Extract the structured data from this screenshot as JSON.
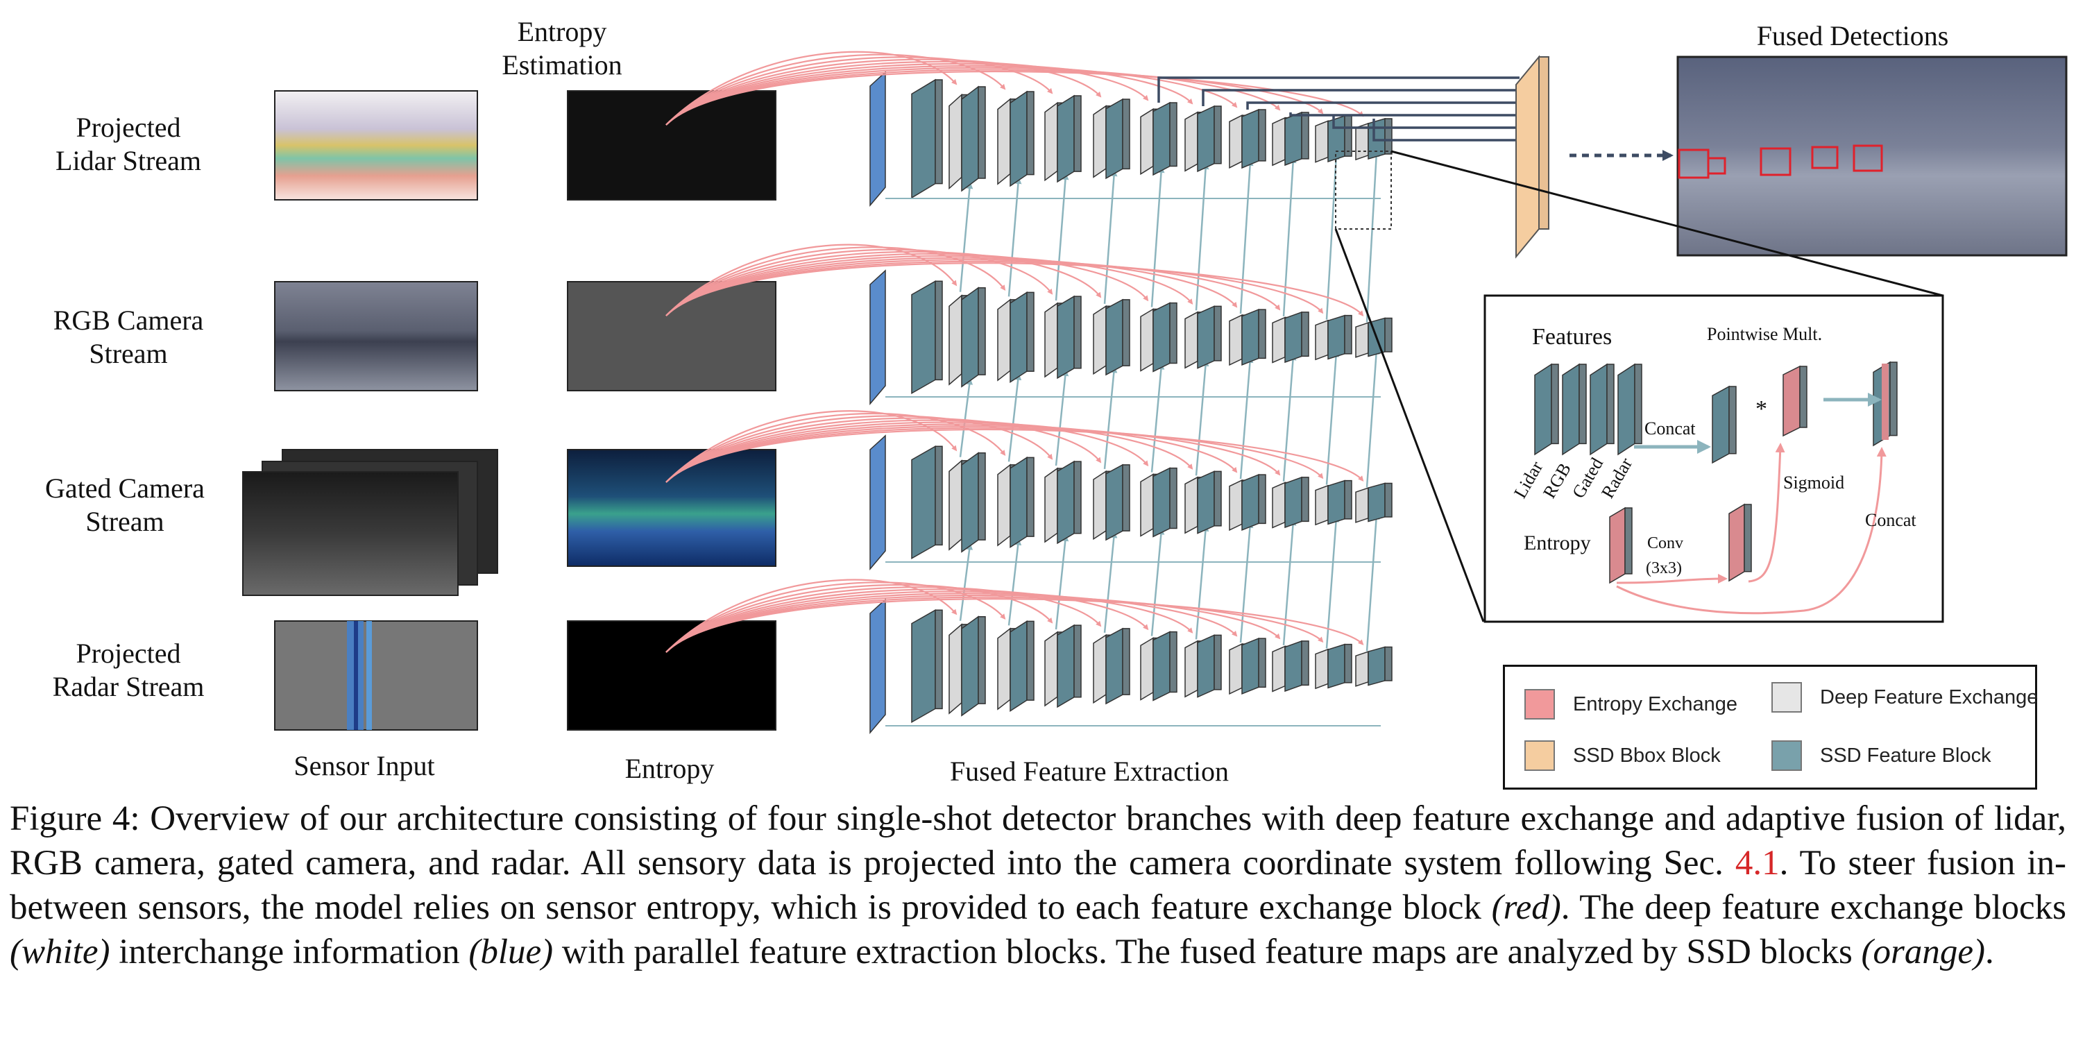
{
  "streams": [
    {
      "label_line1": "Projected",
      "label_line2": "Lidar Stream"
    },
    {
      "label_line1": "RGB Camera",
      "label_line2": "Stream"
    },
    {
      "label_line1": "Gated Camera",
      "label_line2": "Stream"
    },
    {
      "label_line1": "Projected",
      "label_line2": "Radar Stream"
    }
  ],
  "top_label_line1": "Entropy",
  "top_label_line2": "Estimation",
  "bottom_labels": {
    "sensor_input": "Sensor Input",
    "entropy": "Entropy",
    "fused_feature_extraction": "Fused Feature Extraction"
  },
  "fused_detections_title": "Fused Detections",
  "inset": {
    "features": "Features",
    "pointwise": "Pointwise Mult.",
    "star": "*",
    "concat1": "Concat",
    "sigmoid": "Sigmoid",
    "concat2": "Concat",
    "entropy": "Entropy",
    "conv_line1": "Conv",
    "conv_line2": "(3x3)",
    "feature_names": [
      "Lidar",
      "RGB",
      "Gated",
      "Radar"
    ]
  },
  "legend": [
    {
      "label": "Entropy Exchange",
      "color": "#f1999b"
    },
    {
      "label": "Deep Feature Exchange",
      "color": "#e6e6e6"
    },
    {
      "label": "SSD Bbox Block",
      "color": "#f5cda0"
    },
    {
      "label": "SSD Feature Block",
      "color": "#79a1ab"
    }
  ],
  "colors": {
    "entropy_red": "#f1999b",
    "feature_teal": "#5f8793",
    "deep_white": "#d9d9d9",
    "ssd_orange": "#e9c094",
    "input_blue": "#5a8ccc",
    "exchange_blue": "#8cb4bd",
    "ssd_line": "#3d4b63"
  },
  "caption": {
    "figure_no": "Figure 4:",
    "s1": " Overview of our architecture consisting of four single-shot detector branches with deep feature exchange and adaptive fusion of lidar, RGB camera, gated camera, and radar.  All sensory data is projected into the camera coordinate system following Sec. ",
    "ref": "4.1",
    "s2": ". To steer fusion in-between sensors, the model relies on sensor entropy, which is provided to each feature exchange block ",
    "red": "(red)",
    "s3": ". The deep feature exchange blocks ",
    "white": "(white)",
    "s4": " interchange information ",
    "blue": "(blue)",
    "s5": " with parallel feature extraction blocks. The fused feature maps are analyzed by SSD blocks ",
    "orange": "(orange)",
    "s6": "."
  }
}
